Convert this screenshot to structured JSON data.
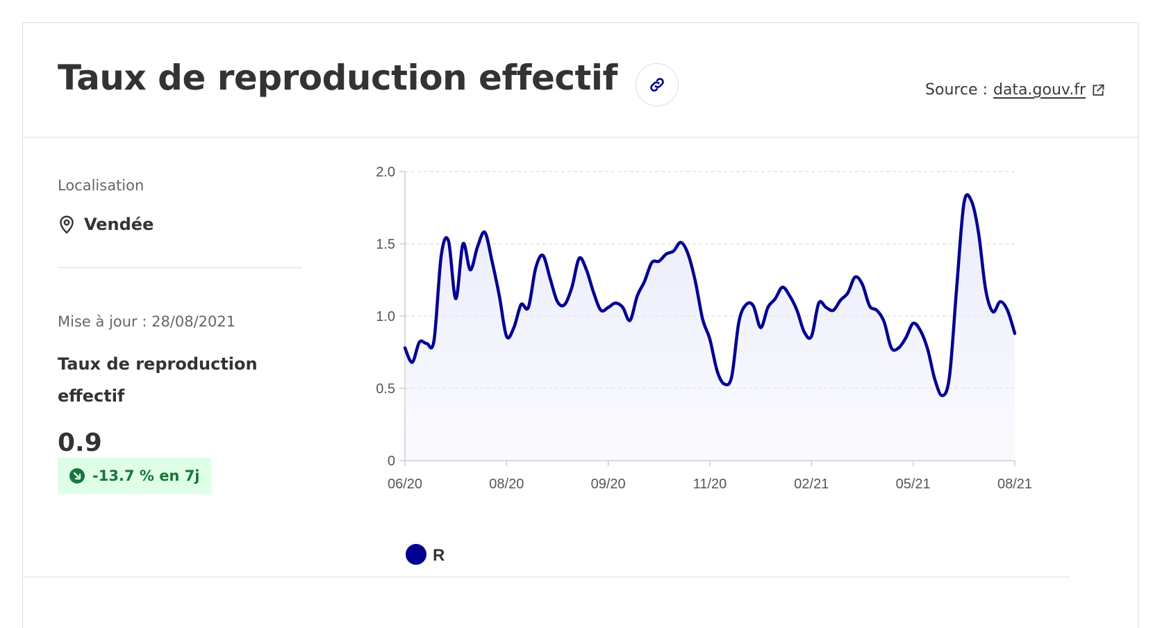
{
  "header": {
    "title": "Taux de reproduction effectif",
    "source_prefix": "Source :",
    "source_link": "data.gouv.fr",
    "link_icon": "link-icon",
    "external_icon": "external-link-icon"
  },
  "sidebar": {
    "location_label": "Localisation",
    "location_value": "Vendée",
    "location_icon": "map-pin-icon",
    "update_text": "Mise à jour : 28/08/2021",
    "indicator_label": "Taux de reproduction effectif",
    "value": "0.9",
    "trend_text": "-13.7 % en 7j",
    "trend_icon": "arrow-down-right-icon"
  },
  "colors": {
    "line": "#000091",
    "fill": "#e8e8fb",
    "badge_bg": "#dffee6",
    "badge_text": "#18753c"
  },
  "chart_data": {
    "type": "area",
    "title": "",
    "xlabel": "",
    "ylabel": "",
    "ylim": [
      0,
      2.0
    ],
    "yticks": [
      "0",
      "0.5",
      "1.0",
      "1.5",
      "2.0"
    ],
    "xticks": [
      "06/20",
      "08/20",
      "09/20",
      "11/20",
      "02/21",
      "05/21",
      "08/21"
    ],
    "grid": "horizontal dashed",
    "legend": "bottom-left",
    "series": [
      {
        "name": "R",
        "values": [
          0.78,
          0.68,
          0.82,
          0.81,
          0.83,
          1.42,
          1.52,
          1.12,
          1.5,
          1.32,
          1.48,
          1.58,
          1.38,
          1.14,
          0.86,
          0.92,
          1.08,
          1.06,
          1.33,
          1.42,
          1.26,
          1.1,
          1.08,
          1.2,
          1.4,
          1.32,
          1.16,
          1.04,
          1.06,
          1.09,
          1.06,
          0.97,
          1.14,
          1.24,
          1.37,
          1.38,
          1.43,
          1.45,
          1.51,
          1.43,
          1.24,
          0.98,
          0.84,
          0.62,
          0.53,
          0.58,
          0.96,
          1.08,
          1.07,
          0.92,
          1.06,
          1.12,
          1.2,
          1.14,
          1.04,
          0.89,
          0.86,
          1.09,
          1.06,
          1.04,
          1.11,
          1.16,
          1.27,
          1.22,
          1.07,
          1.04,
          0.96,
          0.78,
          0.78,
          0.85,
          0.95,
          0.9,
          0.77,
          0.56,
          0.45,
          0.58,
          1.2,
          1.78,
          1.8,
          1.58,
          1.18,
          1.03,
          1.1,
          1.04,
          0.88
        ]
      }
    ]
  }
}
